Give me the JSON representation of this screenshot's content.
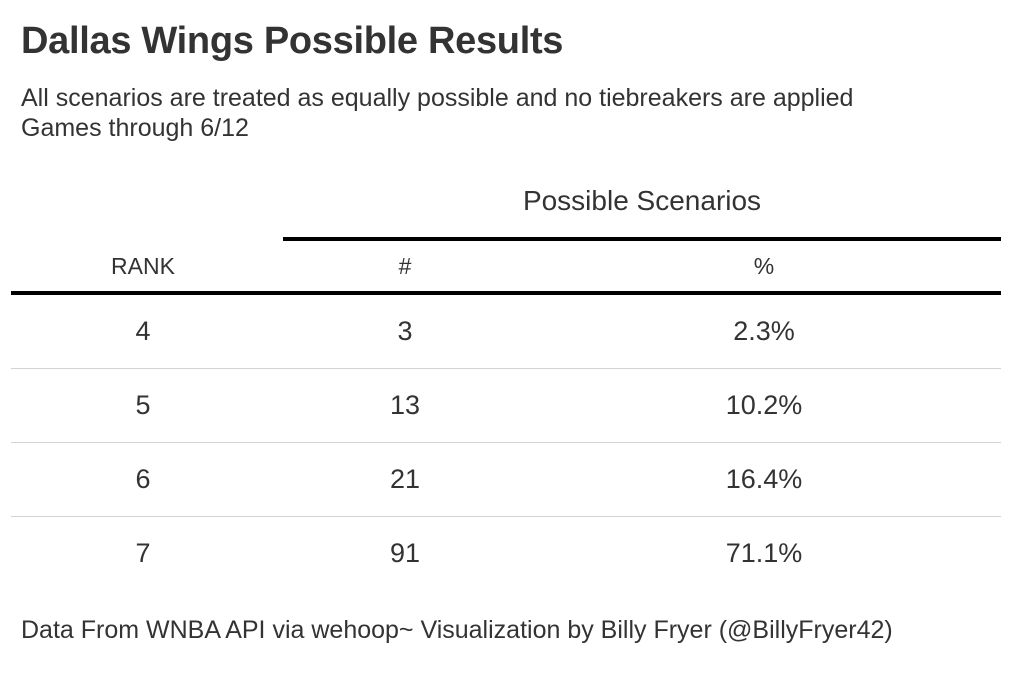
{
  "title": "Dallas Wings Possible Results",
  "subtitle_lines": [
    "All scenarios are treated as equally possible and no tiebreakers are applied",
    "Games through 6/12"
  ],
  "spanner_label": "Possible Scenarios",
  "columns": [
    "RANK",
    "#",
    "%"
  ],
  "rows": [
    {
      "rank": "4",
      "count": "3",
      "pct": "2.3%"
    },
    {
      "rank": "5",
      "count": "13",
      "pct": "10.2%"
    },
    {
      "rank": "6",
      "count": "21",
      "pct": "16.4%"
    },
    {
      "rank": "7",
      "count": "91",
      "pct": "71.1%"
    }
  ],
  "footer": "Data From WNBA API via wehoop~ Visualization by Billy Fryer (@BillyFryer42)",
  "chart_data": {
    "type": "table",
    "title": "Dallas Wings Possible Results",
    "columns": [
      "RANK",
      "#",
      "%"
    ],
    "rows": [
      [
        4,
        3,
        "2.3%"
      ],
      [
        5,
        13,
        "10.2%"
      ],
      [
        6,
        21,
        "16.4%"
      ],
      [
        7,
        91,
        "71.1%"
      ]
    ]
  },
  "colors": {
    "text": "#333333",
    "rule": "#000000",
    "row_divider": "#d3d3d3"
  }
}
